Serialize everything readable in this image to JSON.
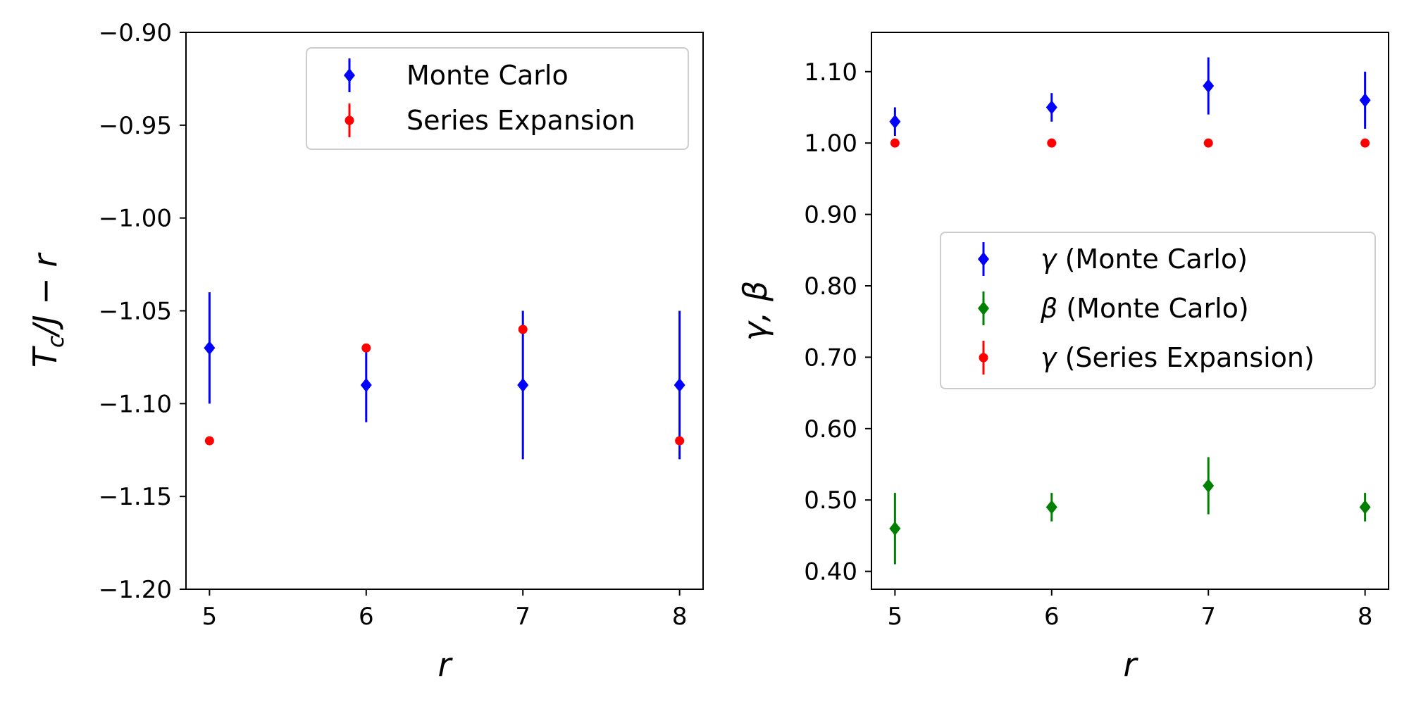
{
  "chart_data": [
    {
      "type": "scatter",
      "xlabel": "r",
      "ylabel": "T_c/J − r",
      "ylabel_parts": {
        "T": "T",
        "sub": "c",
        "rest": "/J − r"
      },
      "xlim": [
        4.85,
        8.15
      ],
      "ylim": [
        -1.2,
        -0.9
      ],
      "xticks": [
        "5",
        "6",
        "7",
        "8"
      ],
      "xtick_values": [
        5,
        6,
        7,
        8
      ],
      "yticks": [
        "−0.90",
        "−0.95",
        "−1.00",
        "−1.05",
        "−1.10",
        "−1.15",
        "−1.20"
      ],
      "ytick_values": [
        -0.9,
        -0.95,
        -1.0,
        -1.05,
        -1.1,
        -1.15,
        -1.2
      ],
      "legend_position": "top-right",
      "series": [
        {
          "name": "Monte Carlo",
          "marker": "diamond",
          "color": "#0000ff",
          "x": [
            5,
            6,
            7,
            8
          ],
          "y": [
            -1.07,
            -1.09,
            -1.09,
            -1.09
          ],
          "yerr": [
            0.03,
            0.02,
            0.04,
            0.04
          ]
        },
        {
          "name": "Series Expansion",
          "marker": "dot",
          "color": "#ff0000",
          "x": [
            5,
            6,
            7,
            8
          ],
          "y": [
            -1.12,
            -1.07,
            -1.06,
            -1.12
          ],
          "yerr": [
            0,
            0,
            0,
            0
          ]
        }
      ]
    },
    {
      "type": "scatter",
      "xlabel": "r",
      "ylabel": "γ, β",
      "xlim": [
        4.85,
        8.15
      ],
      "ylim": [
        0.375,
        1.155
      ],
      "xticks": [
        "5",
        "6",
        "7",
        "8"
      ],
      "xtick_values": [
        5,
        6,
        7,
        8
      ],
      "yticks": [
        "0.40",
        "0.50",
        "0.60",
        "0.70",
        "0.80",
        "0.90",
        "1.00",
        "1.10"
      ],
      "ytick_values": [
        0.4,
        0.5,
        0.6,
        0.7,
        0.8,
        0.9,
        1.0,
        1.1
      ],
      "legend_position": "center-right",
      "series": [
        {
          "name": "γ (Monte Carlo)",
          "symbol": "γ",
          "suffix": " (Monte Carlo)",
          "marker": "diamond",
          "color": "#0000ff",
          "x": [
            5,
            6,
            7,
            8
          ],
          "y": [
            1.03,
            1.05,
            1.08,
            1.06
          ],
          "yerr": [
            0.02,
            0.02,
            0.04,
            0.04
          ]
        },
        {
          "name": "β (Monte Carlo)",
          "symbol": "β",
          "suffix": " (Monte Carlo)",
          "marker": "diamond",
          "color": "#008000",
          "x": [
            5,
            6,
            7,
            8
          ],
          "y": [
            0.46,
            0.49,
            0.52,
            0.49
          ],
          "yerr": [
            0.05,
            0.02,
            0.04,
            0.02
          ]
        },
        {
          "name": "γ (Series Expansion)",
          "symbol": "γ",
          "suffix": " (Series Expansion)",
          "marker": "dot",
          "color": "#ff0000",
          "x": [
            5,
            6,
            7,
            8
          ],
          "y": [
            1.0,
            1.0,
            1.0,
            1.0
          ],
          "yerr": [
            0,
            0,
            0,
            0
          ]
        }
      ]
    }
  ]
}
